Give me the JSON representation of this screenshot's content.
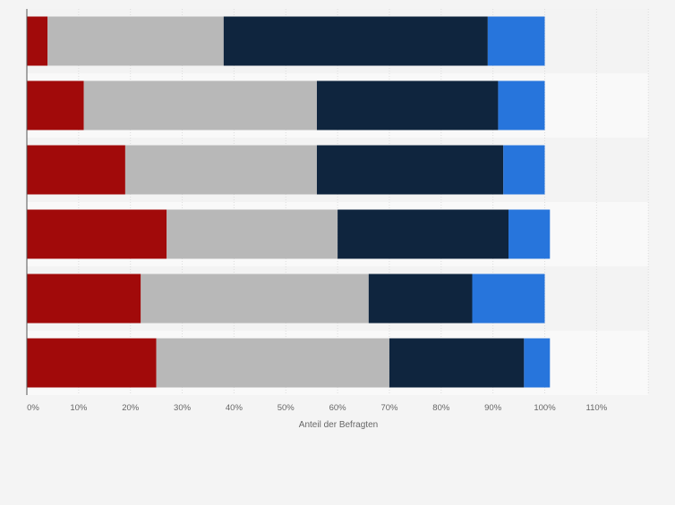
{
  "chart_data": {
    "type": "bar",
    "orientation": "horizontal",
    "stacked": true,
    "title": "",
    "xlabel": "Anteil der Befragten",
    "ylabel": "",
    "xlim": [
      0,
      120
    ],
    "x_ticks": [
      "0%",
      "10%",
      "20%",
      "30%",
      "40%",
      "50%",
      "60%",
      "70%",
      "80%",
      "90%",
      "100%",
      "110%"
    ],
    "grid": true,
    "legend": null,
    "categories": [
      "",
      "",
      "",
      "",
      "",
      ""
    ],
    "series": [
      {
        "name": "",
        "color": "#a10a0a",
        "values": [
          4,
          11,
          19,
          27,
          22,
          25
        ]
      },
      {
        "name": "",
        "color": "#b8b8b8",
        "values": [
          34,
          45,
          37,
          33,
          44,
          45
        ]
      },
      {
        "name": "",
        "color": "#0f253e",
        "values": [
          51,
          35,
          36,
          33,
          20,
          26
        ]
      },
      {
        "name": "",
        "color": "#2775dc",
        "values": [
          11,
          9,
          8,
          8,
          14,
          5
        ]
      }
    ]
  }
}
